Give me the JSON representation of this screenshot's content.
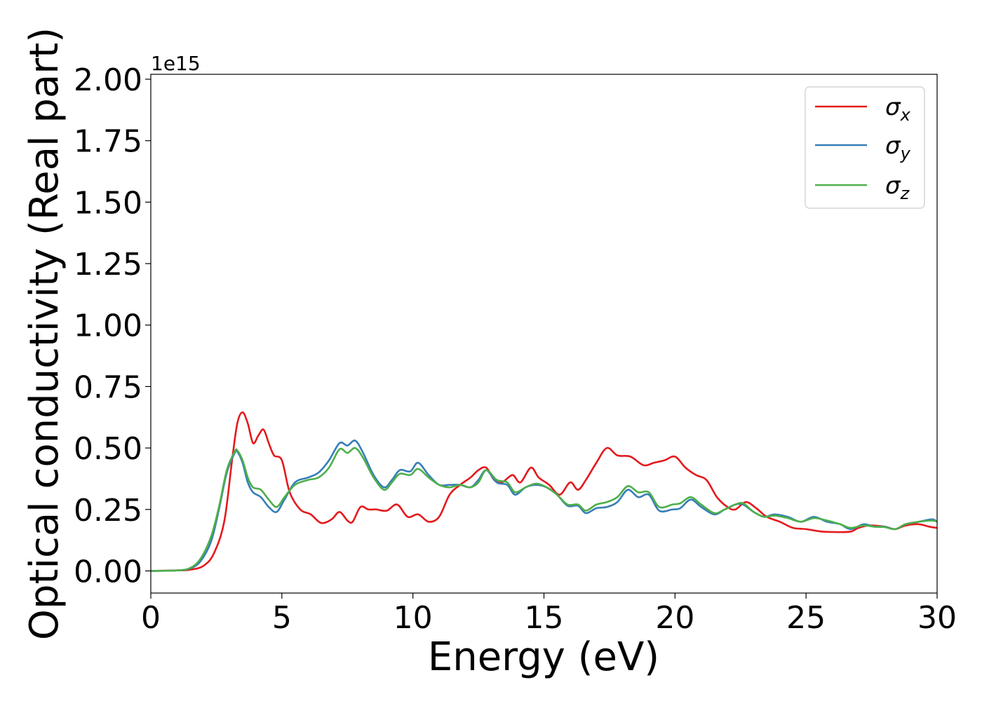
{
  "chart_data": {
    "type": "line",
    "xlabel": "Energy (eV)",
    "ylabel": "Optical conductivity (Real part)",
    "y_offset_label": "1e15",
    "xlim": [
      0,
      30
    ],
    "ylim": [
      -0.09,
      2.02
    ],
    "x_ticks": [
      0,
      5,
      10,
      15,
      20,
      25,
      30
    ],
    "x_tick_labels": [
      "0",
      "5",
      "10",
      "15",
      "20",
      "25",
      "30"
    ],
    "y_ticks": [
      0,
      0.25,
      0.5,
      0.75,
      1.0,
      1.25,
      1.5,
      1.75,
      2.0
    ],
    "y_tick_labels": [
      "0.00",
      "0.25",
      "0.50",
      "0.75",
      "1.00",
      "1.25",
      "1.50",
      "1.75",
      "2.00"
    ],
    "grid": false,
    "legend_position": "top-right",
    "series": [
      {
        "name": "σx",
        "symbol": "σ",
        "subscript": "x",
        "color": "#e41a1c",
        "points": [
          [
            0,
            0
          ],
          [
            1,
            0.002
          ],
          [
            1.5,
            0.005
          ],
          [
            2,
            0.02
          ],
          [
            2.4,
            0.07
          ],
          [
            2.8,
            0.2
          ],
          [
            3.1,
            0.45
          ],
          [
            3.3,
            0.6
          ],
          [
            3.5,
            0.645
          ],
          [
            3.7,
            0.6
          ],
          [
            3.9,
            0.52
          ],
          [
            4.1,
            0.55
          ],
          [
            4.3,
            0.575
          ],
          [
            4.5,
            0.52
          ],
          [
            4.7,
            0.47
          ],
          [
            5.0,
            0.45
          ],
          [
            5.3,
            0.32
          ],
          [
            5.7,
            0.25
          ],
          [
            6.1,
            0.23
          ],
          [
            6.5,
            0.195
          ],
          [
            6.9,
            0.21
          ],
          [
            7.2,
            0.24
          ],
          [
            7.5,
            0.205
          ],
          [
            7.7,
            0.2
          ],
          [
            8.0,
            0.26
          ],
          [
            8.3,
            0.25
          ],
          [
            8.6,
            0.25
          ],
          [
            9.0,
            0.245
          ],
          [
            9.4,
            0.27
          ],
          [
            9.8,
            0.22
          ],
          [
            10.2,
            0.23
          ],
          [
            10.6,
            0.2
          ],
          [
            11.0,
            0.22
          ],
          [
            11.4,
            0.31
          ],
          [
            11.8,
            0.35
          ],
          [
            12.2,
            0.38
          ],
          [
            12.5,
            0.41
          ],
          [
            12.8,
            0.42
          ],
          [
            13.1,
            0.37
          ],
          [
            13.4,
            0.36
          ],
          [
            13.8,
            0.39
          ],
          [
            14.1,
            0.36
          ],
          [
            14.5,
            0.42
          ],
          [
            14.8,
            0.38
          ],
          [
            15.2,
            0.35
          ],
          [
            15.6,
            0.31
          ],
          [
            16.0,
            0.36
          ],
          [
            16.3,
            0.33
          ],
          [
            16.6,
            0.37
          ],
          [
            17.0,
            0.44
          ],
          [
            17.4,
            0.5
          ],
          [
            17.8,
            0.47
          ],
          [
            18.3,
            0.465
          ],
          [
            18.8,
            0.43
          ],
          [
            19.2,
            0.44
          ],
          [
            19.6,
            0.45
          ],
          [
            20.0,
            0.465
          ],
          [
            20.4,
            0.42
          ],
          [
            20.8,
            0.39
          ],
          [
            21.2,
            0.37
          ],
          [
            21.6,
            0.3
          ],
          [
            22.0,
            0.26
          ],
          [
            22.3,
            0.25
          ],
          [
            22.7,
            0.28
          ],
          [
            23.1,
            0.255
          ],
          [
            23.5,
            0.22
          ],
          [
            24.0,
            0.2
          ],
          [
            24.5,
            0.175
          ],
          [
            25.0,
            0.17
          ],
          [
            25.6,
            0.16
          ],
          [
            26.2,
            0.158
          ],
          [
            26.7,
            0.16
          ],
          [
            27.0,
            0.175
          ],
          [
            27.4,
            0.185
          ],
          [
            28.0,
            0.18
          ],
          [
            28.4,
            0.17
          ],
          [
            28.8,
            0.185
          ],
          [
            29.3,
            0.19
          ],
          [
            29.7,
            0.18
          ],
          [
            30.0,
            0.175
          ]
        ]
      },
      {
        "name": "σy",
        "symbol": "σ",
        "subscript": "y",
        "color": "#377eb8",
        "points": [
          [
            0,
            0
          ],
          [
            1,
            0.002
          ],
          [
            1.5,
            0.01
          ],
          [
            1.9,
            0.04
          ],
          [
            2.3,
            0.12
          ],
          [
            2.6,
            0.25
          ],
          [
            2.9,
            0.4
          ],
          [
            3.2,
            0.48
          ],
          [
            3.3,
            0.485
          ],
          [
            3.5,
            0.44
          ],
          [
            3.7,
            0.36
          ],
          [
            3.9,
            0.32
          ],
          [
            4.2,
            0.3
          ],
          [
            4.5,
            0.26
          ],
          [
            4.8,
            0.24
          ],
          [
            5.1,
            0.29
          ],
          [
            5.5,
            0.36
          ],
          [
            6.0,
            0.38
          ],
          [
            6.4,
            0.4
          ],
          [
            6.8,
            0.45
          ],
          [
            7.2,
            0.52
          ],
          [
            7.5,
            0.51
          ],
          [
            7.8,
            0.53
          ],
          [
            8.1,
            0.48
          ],
          [
            8.5,
            0.39
          ],
          [
            8.9,
            0.34
          ],
          [
            9.2,
            0.37
          ],
          [
            9.5,
            0.41
          ],
          [
            9.9,
            0.405
          ],
          [
            10.2,
            0.44
          ],
          [
            10.6,
            0.39
          ],
          [
            11.0,
            0.35
          ],
          [
            11.4,
            0.35
          ],
          [
            11.8,
            0.35
          ],
          [
            12.2,
            0.34
          ],
          [
            12.5,
            0.37
          ],
          [
            12.8,
            0.41
          ],
          [
            13.2,
            0.36
          ],
          [
            13.6,
            0.35
          ],
          [
            13.9,
            0.31
          ],
          [
            14.3,
            0.34
          ],
          [
            14.7,
            0.35
          ],
          [
            15.1,
            0.34
          ],
          [
            15.5,
            0.31
          ],
          [
            15.9,
            0.265
          ],
          [
            16.3,
            0.265
          ],
          [
            16.6,
            0.235
          ],
          [
            17.0,
            0.255
          ],
          [
            17.4,
            0.26
          ],
          [
            17.8,
            0.28
          ],
          [
            18.2,
            0.33
          ],
          [
            18.6,
            0.3
          ],
          [
            19.0,
            0.31
          ],
          [
            19.4,
            0.245
          ],
          [
            19.9,
            0.25
          ],
          [
            20.2,
            0.255
          ],
          [
            20.6,
            0.29
          ],
          [
            21.0,
            0.26
          ],
          [
            21.5,
            0.23
          ],
          [
            21.9,
            0.25
          ],
          [
            22.3,
            0.27
          ],
          [
            22.6,
            0.27
          ],
          [
            23.0,
            0.24
          ],
          [
            23.4,
            0.22
          ],
          [
            23.8,
            0.23
          ],
          [
            24.3,
            0.22
          ],
          [
            24.8,
            0.2
          ],
          [
            25.3,
            0.22
          ],
          [
            25.8,
            0.2
          ],
          [
            26.3,
            0.19
          ],
          [
            26.7,
            0.17
          ],
          [
            27.2,
            0.19
          ],
          [
            27.6,
            0.18
          ],
          [
            28.0,
            0.18
          ],
          [
            28.4,
            0.17
          ],
          [
            28.8,
            0.19
          ],
          [
            29.3,
            0.2
          ],
          [
            29.8,
            0.21
          ],
          [
            30.0,
            0.2
          ]
        ]
      },
      {
        "name": "σz",
        "symbol": "σ",
        "subscript": "z",
        "color": "#4daf4a",
        "points": [
          [
            0,
            0
          ],
          [
            1,
            0.002
          ],
          [
            1.5,
            0.012
          ],
          [
            1.9,
            0.05
          ],
          [
            2.3,
            0.14
          ],
          [
            2.6,
            0.26
          ],
          [
            2.9,
            0.41
          ],
          [
            3.2,
            0.485
          ],
          [
            3.3,
            0.49
          ],
          [
            3.5,
            0.45
          ],
          [
            3.7,
            0.38
          ],
          [
            3.9,
            0.34
          ],
          [
            4.2,
            0.33
          ],
          [
            4.5,
            0.29
          ],
          [
            4.8,
            0.26
          ],
          [
            5.1,
            0.3
          ],
          [
            5.5,
            0.35
          ],
          [
            6.0,
            0.37
          ],
          [
            6.4,
            0.38
          ],
          [
            6.8,
            0.42
          ],
          [
            7.2,
            0.495
          ],
          [
            7.5,
            0.48
          ],
          [
            7.8,
            0.5
          ],
          [
            8.1,
            0.46
          ],
          [
            8.5,
            0.38
          ],
          [
            8.9,
            0.33
          ],
          [
            9.2,
            0.36
          ],
          [
            9.5,
            0.395
          ],
          [
            9.9,
            0.39
          ],
          [
            10.2,
            0.415
          ],
          [
            10.6,
            0.38
          ],
          [
            11.0,
            0.35
          ],
          [
            11.4,
            0.34
          ],
          [
            11.8,
            0.35
          ],
          [
            12.2,
            0.34
          ],
          [
            12.5,
            0.36
          ],
          [
            12.8,
            0.41
          ],
          [
            13.2,
            0.37
          ],
          [
            13.6,
            0.36
          ],
          [
            13.9,
            0.32
          ],
          [
            14.3,
            0.34
          ],
          [
            14.7,
            0.355
          ],
          [
            15.1,
            0.34
          ],
          [
            15.5,
            0.31
          ],
          [
            15.9,
            0.27
          ],
          [
            16.3,
            0.27
          ],
          [
            16.6,
            0.245
          ],
          [
            17.0,
            0.27
          ],
          [
            17.4,
            0.28
          ],
          [
            17.8,
            0.3
          ],
          [
            18.2,
            0.345
          ],
          [
            18.6,
            0.32
          ],
          [
            19.0,
            0.32
          ],
          [
            19.4,
            0.26
          ],
          [
            19.9,
            0.27
          ],
          [
            20.2,
            0.275
          ],
          [
            20.6,
            0.3
          ],
          [
            21.0,
            0.27
          ],
          [
            21.5,
            0.235
          ],
          [
            21.9,
            0.25
          ],
          [
            22.3,
            0.27
          ],
          [
            22.6,
            0.275
          ],
          [
            23.0,
            0.24
          ],
          [
            23.4,
            0.22
          ],
          [
            23.8,
            0.225
          ],
          [
            24.3,
            0.215
          ],
          [
            24.8,
            0.2
          ],
          [
            25.3,
            0.215
          ],
          [
            25.8,
            0.205
          ],
          [
            26.3,
            0.19
          ],
          [
            26.7,
            0.175
          ],
          [
            27.2,
            0.185
          ],
          [
            27.6,
            0.18
          ],
          [
            28.0,
            0.178
          ],
          [
            28.4,
            0.17
          ],
          [
            28.8,
            0.19
          ],
          [
            29.3,
            0.2
          ],
          [
            29.8,
            0.205
          ],
          [
            30.0,
            0.2
          ]
        ]
      }
    ]
  }
}
